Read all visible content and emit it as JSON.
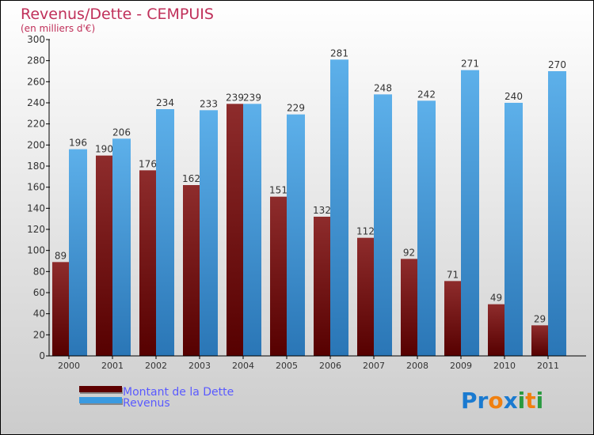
{
  "chart_data": {
    "type": "bar",
    "title": "Revenus/Dette - CEMPUIS",
    "subtitle": "(en milliers d'€)",
    "xlabel": "",
    "ylabel": "",
    "ylim": [
      0,
      300
    ],
    "yticks": [
      0,
      20,
      40,
      60,
      80,
      100,
      120,
      140,
      160,
      180,
      200,
      220,
      240,
      260,
      280,
      300
    ],
    "categories": [
      "2000",
      "2001",
      "2002",
      "2003",
      "2004",
      "2005",
      "2006",
      "2007",
      "2008",
      "2009",
      "2010",
      "2011"
    ],
    "series": [
      {
        "name": "Montant de la Dette",
        "color": "#6b0a0a",
        "values": [
          89,
          190,
          176,
          162,
          239,
          151,
          132,
          112,
          92,
          71,
          49,
          29
        ]
      },
      {
        "name": "Revenus",
        "color": "#3a9ae0",
        "values": [
          196,
          206,
          234,
          233,
          239,
          229,
          281,
          248,
          242,
          271,
          240,
          270
        ]
      }
    ],
    "legend": "bottom-left",
    "grid": false
  },
  "colors": {
    "title": "#c0305a",
    "legend_text": "#5a5aff"
  },
  "logo": {
    "text": "Proxiti"
  }
}
